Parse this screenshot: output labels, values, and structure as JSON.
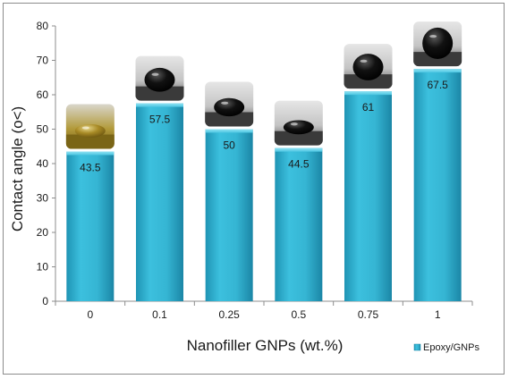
{
  "chart_data": {
    "type": "bar",
    "title": "",
    "xlabel": "Nanofiller GNPs (wt.%)",
    "ylabel": "Contact angle (o<)",
    "categories": [
      "0",
      "0.1",
      "0.25",
      "0.5",
      "0.75",
      "1"
    ],
    "series": [
      {
        "name": "Epoxy/GNPs",
        "values": [
          43.5,
          57.5,
          50,
          44.5,
          61,
          67.5
        ],
        "color": "#33b4d2"
      }
    ],
    "data_labels": [
      "43.5",
      "57.5",
      "50",
      "44.5",
      "61",
      "67.5"
    ],
    "ylim": [
      0,
      80
    ],
    "yticks": [
      0,
      10,
      20,
      30,
      40,
      50,
      60,
      70,
      80
    ],
    "grid": false,
    "legend_position": "bottom-right",
    "droplet_images": [
      "droplet-photo",
      "droplet-photo",
      "droplet-photo",
      "droplet-photo",
      "droplet-photo",
      "droplet-photo"
    ]
  }
}
